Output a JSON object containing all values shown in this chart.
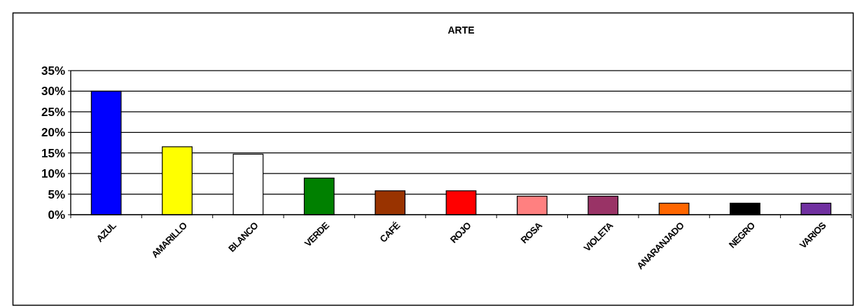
{
  "chart_data": {
    "type": "bar",
    "title": "ARTE",
    "categories": [
      "AZUL",
      "AMARILLO",
      "BLANCO",
      "VERDE",
      "CAFÉ",
      "ROJO",
      "ROSA",
      "VIOLETA",
      "ANARANJADO",
      "NEGRO",
      "VARIOS"
    ],
    "values": [
      30,
      16.5,
      14.7,
      8.9,
      5.8,
      5.8,
      4.5,
      4.5,
      2.8,
      2.8,
      2.8
    ],
    "colors": [
      "#0000ff",
      "#ffff00",
      "#ffffff",
      "#008000",
      "#993300",
      "#ff0000",
      "#ff8080",
      "#993366",
      "#ff6600",
      "#000000",
      "#7030a0"
    ],
    "ylim": [
      0,
      35
    ],
    "yticks": [
      {
        "value": 0,
        "label": "0%"
      },
      {
        "value": 5,
        "label": "5%"
      },
      {
        "value": 10,
        "label": "10%"
      },
      {
        "value": 15,
        "label": "15%"
      },
      {
        "value": 20,
        "label": "20%"
      },
      {
        "value": 25,
        "label": "25%"
      },
      {
        "value": 30,
        "label": "30%"
      },
      {
        "value": 35,
        "label": "35%"
      }
    ],
    "grid": "y"
  }
}
